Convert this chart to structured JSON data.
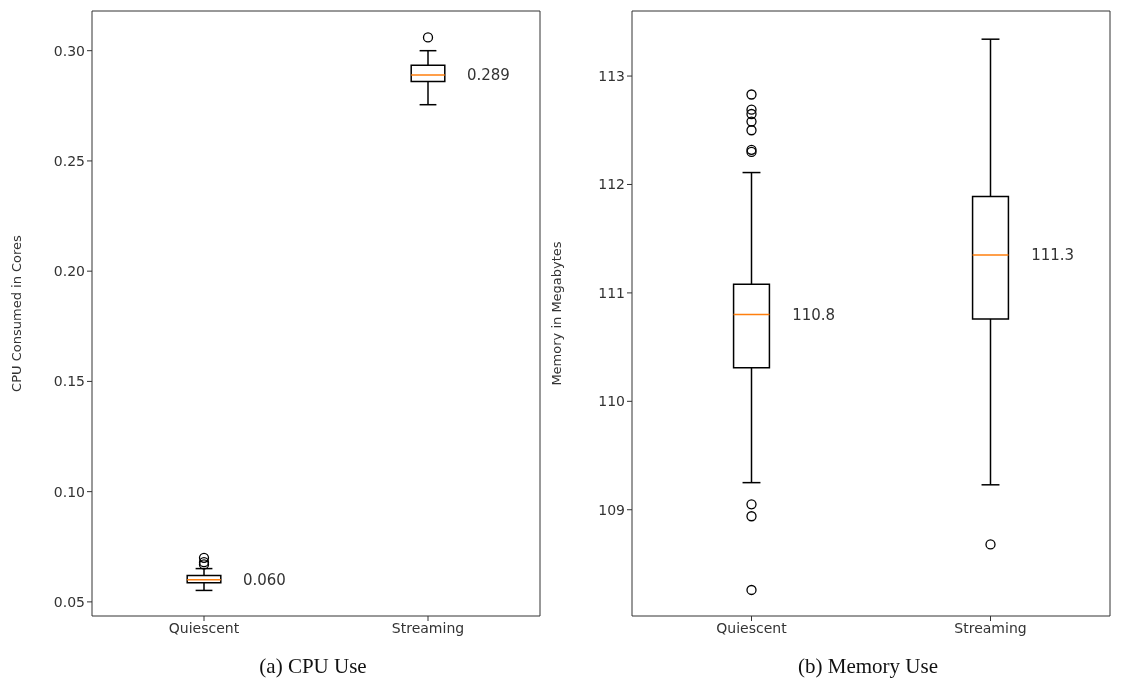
{
  "chart_data": [
    {
      "type": "box",
      "ylabel": "CPU Consumed in Cores",
      "categories": [
        "Quiescent",
        "Streaming"
      ],
      "ylim": [
        0.0436,
        0.318
      ],
      "yticks": [
        {
          "value": 0.05,
          "label": "0.05"
        },
        {
          "value": 0.1,
          "label": "0.10"
        },
        {
          "value": 0.15,
          "label": "0.15"
        },
        {
          "value": 0.2,
          "label": "0.20"
        },
        {
          "value": 0.25,
          "label": "0.25"
        },
        {
          "value": 0.3,
          "label": "0.30"
        }
      ],
      "grid": false,
      "series": [
        {
          "color": "#000000",
          "value_labels": [
            "0.060",
            "0.289"
          ],
          "boxes": [
            {
              "low": 0.0552,
              "q1": 0.0587,
              "median": 0.06,
              "q3": 0.062,
              "high": 0.0651,
              "outliers": [
                0.067,
                0.068,
                0.07
              ]
            },
            {
              "low": 0.2755,
              "q1": 0.286,
              "median": 0.289,
              "q3": 0.2934,
              "high": 0.3,
              "outliers": [
                0.306
              ]
            }
          ]
        }
      ],
      "annotations": [
        "(a) CPU Use"
      ]
    },
    {
      "type": "box",
      "ylabel": "Memory in Megabytes",
      "categories": [
        "Quiescent",
        "Streaming"
      ],
      "ylim": [
        108.02,
        113.6
      ],
      "yticks": [
        109,
        110,
        111,
        112,
        113
      ],
      "grid": false,
      "series": [
        {
          "color": "#000000",
          "value_labels": [
            "110.8",
            "111.3"
          ],
          "boxes": [
            {
              "low": 109.25,
              "q1": 110.31,
              "median": 110.8,
              "q3": 111.08,
              "high": 112.11,
              "outliers": [
                108.26,
                108.94,
                109.05,
                112.3,
                112.32,
                112.5,
                112.58,
                112.65,
                112.69,
                112.83
              ]
            },
            {
              "low": 109.23,
              "q1": 110.76,
              "median": 111.35,
              "q3": 111.89,
              "high": 113.34,
              "outliers": [
                108.68
              ]
            }
          ]
        }
      ],
      "annotations": [
        "(b) Memory Use"
      ]
    }
  ]
}
